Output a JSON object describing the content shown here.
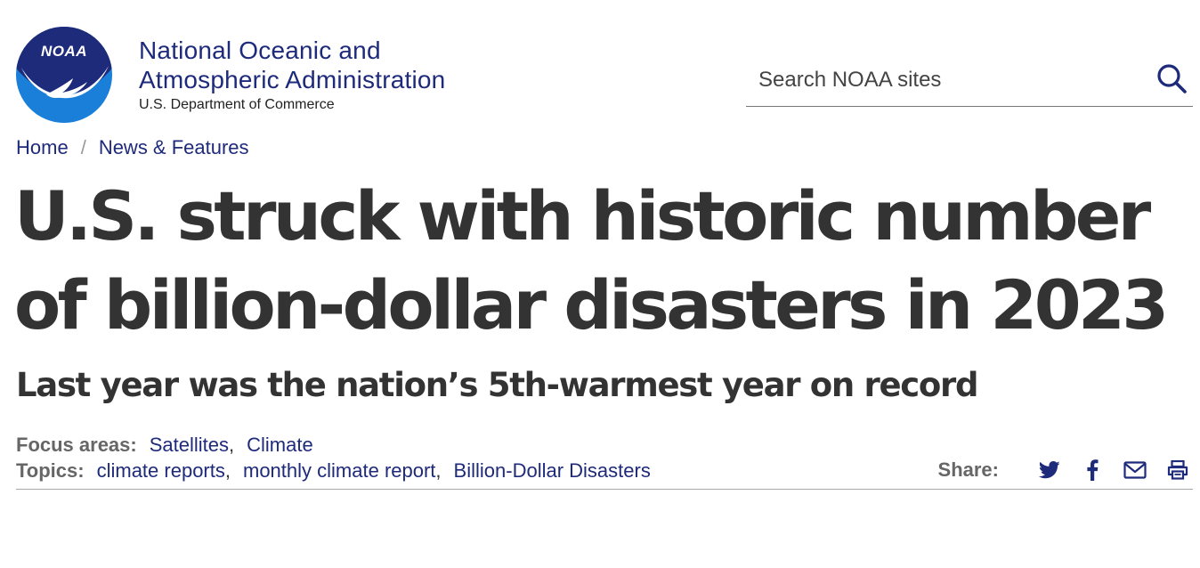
{
  "org": {
    "name_line1": "National Oceanic and",
    "name_line2": "Atmospheric Administration",
    "department": "U.S. Department of Commerce",
    "logo_text": "NOAA"
  },
  "search": {
    "placeholder": "Search NOAA sites",
    "icon": "search-icon"
  },
  "breadcrumb": {
    "home": "Home",
    "separator": "/",
    "section": "News & Features"
  },
  "article": {
    "title": "U.S. struck with historic number of billion-dollar disasters in 2023",
    "subtitle": "Last year was the nation’s 5th-warmest year on record"
  },
  "focus_areas": {
    "label": "Focus areas:",
    "items": [
      "Satellites",
      "Climate"
    ],
    "separator": ","
  },
  "topics": {
    "label": "Topics:",
    "items": [
      "climate reports",
      "monthly climate report",
      "Billion-Dollar Disasters"
    ],
    "separator": " ,"
  },
  "share": {
    "label": "Share:",
    "icons": [
      "twitter-icon",
      "facebook-icon",
      "email-icon",
      "print-icon"
    ]
  },
  "colors": {
    "brand_navy": "#1e2a7a",
    "logo_blue": "#1a7fd8",
    "text_dark": "#333333",
    "text_muted": "#666666"
  }
}
